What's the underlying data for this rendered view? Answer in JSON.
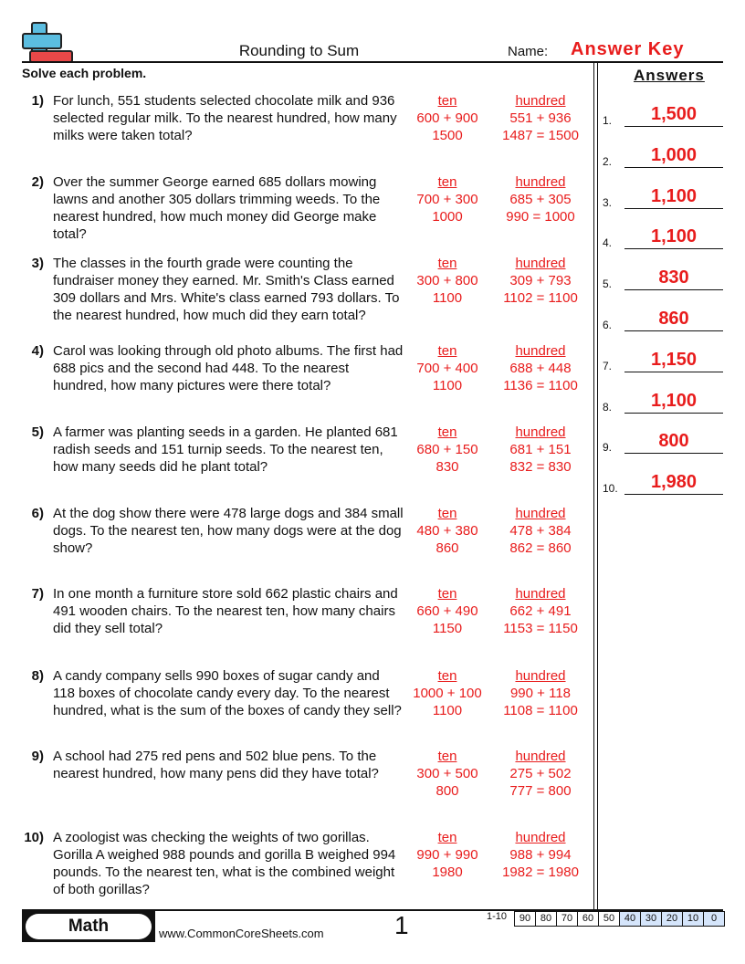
{
  "header": {
    "title": "Rounding to Sum",
    "name_label": "Name:",
    "name_value": "Answer Key",
    "instructions": "Solve each problem.",
    "answers_heading": "Answers"
  },
  "problems": [
    {
      "num": "1)",
      "text": "For lunch, 551 students selected chocolate milk and 936 selected regular milk. To the nearest hundred, how many milks were taken total?",
      "ten": [
        "ten",
        "600 + 900",
        "1500"
      ],
      "hundred": [
        "hundred",
        "551 + 936",
        "1487 = 1500"
      ]
    },
    {
      "num": "2)",
      "text": "Over the summer George earned 685 dollars mowing lawns and another 305 dollars trimming weeds. To the nearest hundred, how much money did George make total?",
      "ten": [
        "ten",
        "700 + 300",
        "1000"
      ],
      "hundred": [
        "hundred",
        "685 + 305",
        "990 = 1000"
      ]
    },
    {
      "num": "3)",
      "text": "The classes in the fourth grade were counting the fundraiser money they earned. Mr. Smith's Class earned 309 dollars and Mrs. White's class earned 793 dollars. To the nearest hundred, how much did they earn total?",
      "ten": [
        "ten",
        "300 + 800",
        "1100"
      ],
      "hundred": [
        "hundred",
        "309 + 793",
        "1102 = 1100"
      ]
    },
    {
      "num": "4)",
      "text": "Carol was looking through old photo albums. The first had 688 pics and the second had 448. To the nearest hundred, how many pictures were there total?",
      "ten": [
        "ten",
        "700 + 400",
        "1100"
      ],
      "hundred": [
        "hundred",
        "688 + 448",
        "1136 = 1100"
      ]
    },
    {
      "num": "5)",
      "text": "A farmer was planting seeds in a garden. He planted 681 radish seeds and 151 turnip seeds. To the nearest ten, how many seeds did he plant total?",
      "ten": [
        "ten",
        "680 + 150",
        "830"
      ],
      "hundred": [
        "hundred",
        "681 + 151",
        "832 = 830"
      ]
    },
    {
      "num": "6)",
      "text": "At the dog show there were 478 large dogs and 384 small dogs. To the nearest ten, how many dogs were at the dog show?",
      "ten": [
        "ten",
        "480 + 380",
        "860"
      ],
      "hundred": [
        "hundred",
        "478 + 384",
        "862 = 860"
      ]
    },
    {
      "num": "7)",
      "text": "In one month a furniture store sold 662 plastic chairs and 491 wooden chairs. To the nearest ten, how many chairs did they sell total?",
      "ten": [
        "ten",
        "660 + 490",
        "1150"
      ],
      "hundred": [
        "hundred",
        "662 + 491",
        "1153 = 1150"
      ]
    },
    {
      "num": "8)",
      "text": "A candy company sells 990 boxes of sugar candy and 118 boxes of chocolate candy every day. To the nearest hundred, what is the sum of the boxes of candy they sell?",
      "ten": [
        "ten",
        "1000 + 100",
        "1100"
      ],
      "hundred": [
        "hundred",
        "990 + 118",
        "1108 = 1100"
      ]
    },
    {
      "num": "9)",
      "text": "A school had 275 red pens and 502 blue pens. To the nearest hundred, how many pens did they have total?",
      "ten": [
        "ten",
        "300 + 500",
        "800"
      ],
      "hundred": [
        "hundred",
        "275 + 502",
        "777 = 800"
      ]
    },
    {
      "num": "10)",
      "text": "A zoologist was checking the weights of two gorillas. Gorilla A weighed 988 pounds and gorilla B weighed 994 pounds. To the nearest ten, what is the combined weight of both gorillas?",
      "ten": [
        "ten",
        "990 + 990",
        "1980"
      ],
      "hundred": [
        "hundred",
        "988 + 994",
        "1982 = 1980"
      ]
    }
  ],
  "answers": [
    {
      "num": "1.",
      "value": "1,500"
    },
    {
      "num": "2.",
      "value": "1,000"
    },
    {
      "num": "3.",
      "value": "1,100"
    },
    {
      "num": "4.",
      "value": "1,100"
    },
    {
      "num": "5.",
      "value": "830"
    },
    {
      "num": "6.",
      "value": "860"
    },
    {
      "num": "7.",
      "value": "1,150"
    },
    {
      "num": "8.",
      "value": "1,100"
    },
    {
      "num": "9.",
      "value": "800"
    },
    {
      "num": "10.",
      "value": "1,980"
    }
  ],
  "footer": {
    "subject": "Math",
    "website": "www.CommonCoreSheets.com",
    "page_number": "1",
    "score_label": "1-10",
    "scores": [
      "90",
      "80",
      "70",
      "60",
      "50",
      "40",
      "30",
      "20",
      "10",
      "0"
    ]
  },
  "colors": {
    "answer_red": "#e81c1c",
    "logo_blue": "#5bbde0",
    "logo_red": "#e84848",
    "score_highlight": "#d5e5fb"
  }
}
